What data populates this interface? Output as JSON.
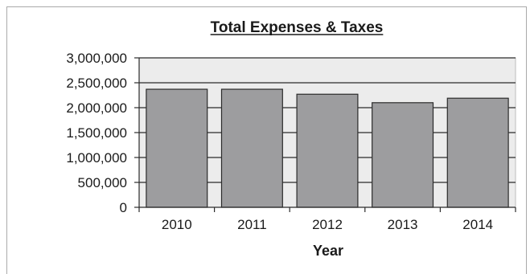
{
  "chart_data": {
    "type": "bar",
    "title": "Total Expenses & Taxes",
    "xlabel": "Year",
    "ylabel": "",
    "categories": [
      "2010",
      "2011",
      "2012",
      "2013",
      "2014"
    ],
    "values": [
      2370000,
      2370000,
      2270000,
      2100000,
      2190000
    ],
    "ylim": [
      0,
      3000000
    ],
    "yticks": [
      0,
      500000,
      1000000,
      1500000,
      2000000,
      2500000,
      3000000
    ],
    "ytick_labels": [
      "0",
      "500,000",
      "1,000,000",
      "1,500,000",
      "2,000,000",
      "2,500,000",
      "3,000,000"
    ],
    "grid": true,
    "legend": "none",
    "colors": {
      "bar_fill": "#9d9d9f",
      "bar_stroke": "#2b2b2b",
      "plot_background": "#ececec",
      "gridline": "#2b2b2b",
      "text": "#1a1a1a"
    }
  }
}
